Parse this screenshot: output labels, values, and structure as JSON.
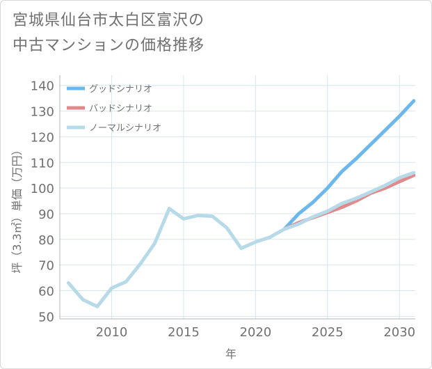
{
  "title": {
    "line1": "宮城県仙台市太白区富沢の",
    "line2": "中古マンションの価格推移"
  },
  "chart_data": {
    "type": "line",
    "title": "宮城県仙台市太白区富沢の中古マンションの価格推移",
    "xlabel": "年",
    "ylabel": "坪（3.3㎡）単価（万円）",
    "xlim": [
      2006.4,
      2031.1
    ],
    "ylim": [
      49,
      144
    ],
    "x_ticks": [
      2010,
      2015,
      2020,
      2025,
      2030
    ],
    "y_ticks": [
      50,
      60,
      70,
      80,
      90,
      100,
      110,
      120,
      130,
      140
    ],
    "grid": true,
    "legend_position": "top-left",
    "series": [
      {
        "name": "グッドシナリオ",
        "color": "#6cb8ec",
        "x": [
          2022,
          2023,
          2024,
          2025,
          2026,
          2027,
          2028,
          2029,
          2030,
          2031
        ],
        "values": [
          84.0,
          90.0,
          94.5,
          100.0,
          106.5,
          111.5,
          117.0,
          122.5,
          128.0,
          134.0
        ]
      },
      {
        "name": "バッドシナリオ",
        "color": "#e08a8e",
        "x": [
          2022,
          2023,
          2024,
          2025,
          2026,
          2027,
          2028,
          2029,
          2030,
          2031
        ],
        "values": [
          84.0,
          86.5,
          88.5,
          90.5,
          92.5,
          95.0,
          98.0,
          100.0,
          102.5,
          105.0
        ]
      },
      {
        "name": "ノーマルシナリオ",
        "color": "#b7dae8",
        "x": [
          2007,
          2008,
          2009,
          2010,
          2011,
          2012,
          2013,
          2014,
          2015,
          2016,
          2017,
          2018,
          2019,
          2020,
          2021,
          2022,
          2023,
          2024,
          2025,
          2026,
          2027,
          2028,
          2029,
          2030,
          2031
        ],
        "values": [
          63.0,
          56.5,
          53.8,
          61.0,
          63.5,
          70.5,
          78.5,
          92.0,
          88.0,
          89.3,
          89.0,
          84.5,
          76.5,
          79.0,
          80.8,
          84.0,
          86.0,
          88.8,
          91.0,
          94.0,
          96.0,
          98.5,
          101.0,
          104.0,
          106.0
        ]
      }
    ]
  }
}
